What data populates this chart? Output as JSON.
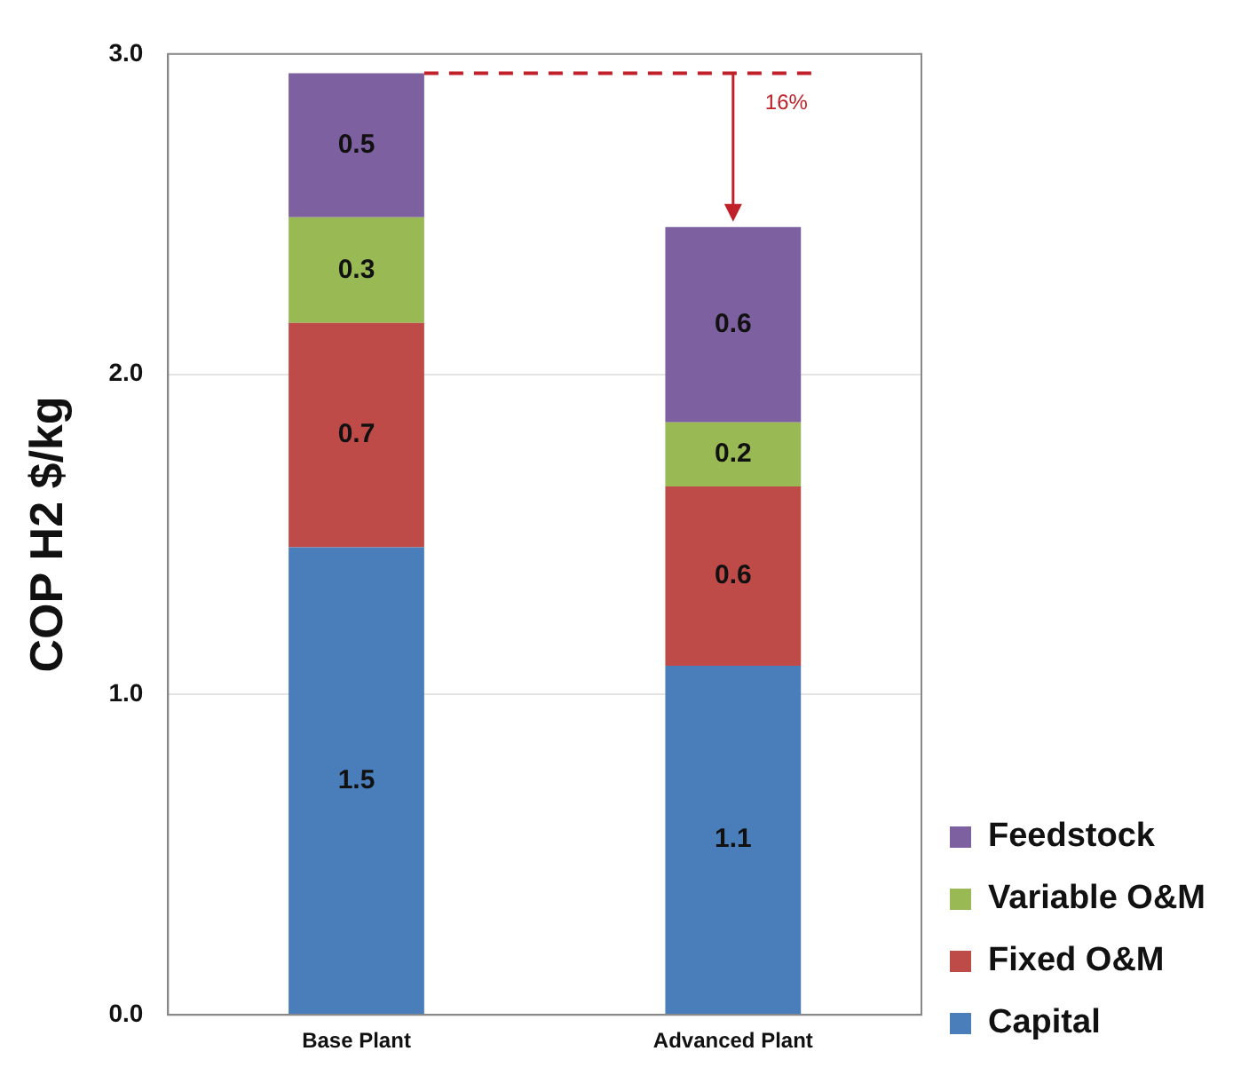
{
  "chart_data": {
    "type": "bar",
    "stacked": true,
    "categories": [
      "Base Plant",
      "Advanced Plant"
    ],
    "ylabel": "COP H2 $/kg",
    "ylim": [
      0,
      3
    ],
    "yticks": [
      {
        "value": 0,
        "label": "0.0"
      },
      {
        "value": 1,
        "label": "1.0"
      },
      {
        "value": 2,
        "label": "2.0"
      },
      {
        "value": 3,
        "label": "3.0"
      }
    ],
    "grid": "y",
    "legend": "bottom right",
    "series": [
      {
        "name": "Capital",
        "color": "#4a7ebb",
        "values": [
          1.46,
          1.09
        ],
        "value_labels": [
          "1.5",
          "1.1"
        ]
      },
      {
        "name": "Fixed O&M",
        "color": "#be4b48",
        "values": [
          0.7,
          0.56
        ],
        "value_labels": [
          "0.7",
          "0.6"
        ]
      },
      {
        "name": "Variable O&M",
        "color": "#98b954",
        "values": [
          0.33,
          0.2
        ],
        "value_labels": [
          "0.3",
          "0.2"
        ]
      },
      {
        "name": "Feedstock",
        "color": "#7d60a0",
        "values": [
          0.45,
          0.61
        ],
        "value_labels": [
          "0.5",
          "0.6"
        ]
      }
    ],
    "ref_lines": [
      {
        "axis": "y",
        "value": 2.94,
        "color": "#c0202a",
        "line_style": "dashed"
      }
    ],
    "annotations": [
      "16%"
    ]
  }
}
